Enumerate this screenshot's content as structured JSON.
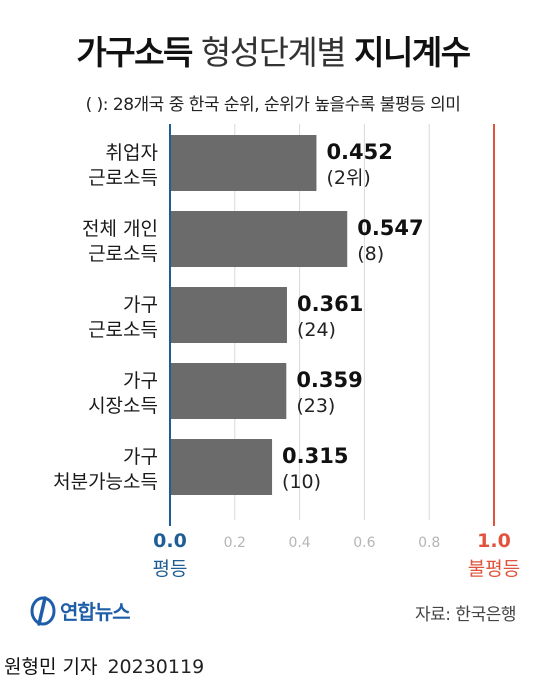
{
  "title": {
    "bold_part1": "가구소득",
    "light_part": " 형성단계별 ",
    "bold_part2": "지니계수"
  },
  "subtitle": "( ): 28개국 중 한국 순위, 순위가 높을수록 불평등 의미",
  "chart_data": {
    "type": "bar",
    "orientation": "horizontal",
    "categories": [
      [
        "취업자",
        "근로소득"
      ],
      [
        "전체 개인",
        "근로소득"
      ],
      [
        "가구",
        "근로소득"
      ],
      [
        "가구",
        "시장소득"
      ],
      [
        "가구",
        "처분가능소득"
      ]
    ],
    "values": [
      0.452,
      0.547,
      0.361,
      0.359,
      0.315
    ],
    "value_labels": [
      "0.452",
      "0.547",
      "0.361",
      "0.359",
      "0.315"
    ],
    "rank_labels": [
      "(2위)",
      "(8)",
      "(24)",
      "(23)",
      "(10)"
    ],
    "xlim": [
      0,
      1.0
    ],
    "xticks": [
      {
        "value": 0.0,
        "label": "0.0"
      },
      {
        "value": 0.2,
        "label": "0.2"
      },
      {
        "value": 0.4,
        "label": "0.4"
      },
      {
        "value": 0.6,
        "label": "0.6"
      },
      {
        "value": 0.8,
        "label": "0.8"
      },
      {
        "value": 1.0,
        "label": "1.0"
      }
    ],
    "axis_end_labels": {
      "min": "평등",
      "max": "불평등"
    },
    "grid": true,
    "colors": {
      "bar": "#6b6b6b",
      "min_line": "#1f5e94",
      "max_line": "#e0533d",
      "grid": "#d8d8d8",
      "tick": "#b5b5b5"
    }
  },
  "footer": {
    "logo_text": "연합뉴스",
    "source": "자료: 한국은행"
  },
  "byline": {
    "author": "원형민 기자",
    "date": "20230119"
  }
}
